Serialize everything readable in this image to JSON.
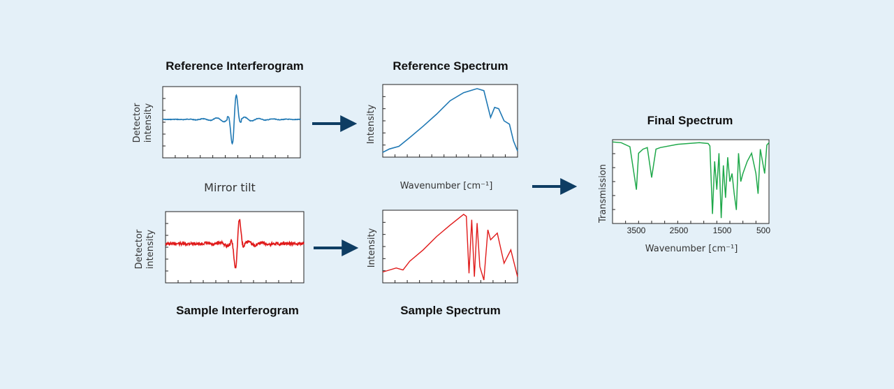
{
  "colors": {
    "background": "#e4f0f8",
    "reference": "#1f78b4",
    "sample": "#e01a1a",
    "final": "#1fa84a",
    "arrow": "#0e3d63"
  },
  "labels": {
    "reference_interferogram": "Reference Interferogram",
    "reference_spectrum": "Reference Spectrum",
    "sample_interferogram": "Sample Interferogram",
    "sample_spectrum": "Sample Spectrum",
    "final_spectrum": "Final Spectrum",
    "mirror_tilt": "Mirror tilt",
    "wavenumber_mid": "Wavenumber [cm⁻¹]",
    "detector_intensity_line1": "Detector",
    "detector_intensity_line2": "intensity",
    "intensity": "Intensity",
    "transmission": "Transmission",
    "final_xlabel": "Wavenumber [cm⁻¹]"
  },
  "chart_data": [
    {
      "type": "line",
      "id": "reference_interferogram",
      "title": "Reference Interferogram",
      "ylabel": "Detector intensity",
      "series": [
        {
          "x": [
            0,
            0.2,
            0.4,
            0.44,
            0.46,
            0.49,
            0.5,
            0.51,
            0.53,
            0.56,
            0.6,
            0.8,
            1.0
          ],
          "values": [
            0,
            0.01,
            -0.02,
            0.06,
            -0.08,
            0.5,
            0.85,
            -1.0,
            -0.1,
            0.05,
            -0.03,
            0.01,
            0
          ]
        }
      ]
    },
    {
      "type": "line",
      "id": "sample_interferogram",
      "title": "Sample Interferogram",
      "ylabel": "Detector intensity",
      "series": [
        {
          "x": [
            0,
            0.2,
            0.4,
            0.46,
            0.49,
            0.5,
            0.51,
            0.53,
            0.56,
            0.6,
            0.8,
            1.0
          ],
          "values": [
            0,
            0.04,
            -0.05,
            0.12,
            0.5,
            0.85,
            -1.0,
            -0.15,
            0.1,
            -0.06,
            0.04,
            0
          ]
        }
      ]
    },
    {
      "type": "line",
      "id": "reference_spectrum",
      "title": "Reference Spectrum",
      "ylabel": "Intensity",
      "xlabel": "Wavenumber [cm⁻¹]",
      "series": [
        {
          "x": [
            0,
            0.05,
            0.12,
            0.2,
            0.3,
            0.4,
            0.5,
            0.6,
            0.7,
            0.75,
            0.8,
            0.83,
            0.86,
            0.9,
            0.94,
            0.97,
            1.0
          ],
          "values": [
            0.03,
            0.08,
            0.12,
            0.25,
            0.42,
            0.6,
            0.8,
            0.92,
            0.98,
            0.95,
            0.55,
            0.7,
            0.68,
            0.5,
            0.45,
            0.2,
            0.05
          ]
        }
      ]
    },
    {
      "type": "line",
      "id": "sample_spectrum",
      "title": "Sample Spectrum",
      "ylabel": "Intensity",
      "series": [
        {
          "x": [
            0,
            0.1,
            0.15,
            0.2,
            0.3,
            0.4,
            0.5,
            0.6,
            0.62,
            0.64,
            0.66,
            0.68,
            0.7,
            0.72,
            0.75,
            0.78,
            0.8,
            0.85,
            0.9,
            0.95,
            1.0
          ],
          "values": [
            0.12,
            0.18,
            0.15,
            0.28,
            0.45,
            0.65,
            0.82,
            0.98,
            0.95,
            0.1,
            0.9,
            0.05,
            0.85,
            0.2,
            0.0,
            0.75,
            0.6,
            0.7,
            0.25,
            0.45,
            0.05
          ]
        }
      ]
    },
    {
      "type": "line",
      "id": "final_spectrum",
      "title": "Final Spectrum",
      "ylabel": "Transmission",
      "xlabel": "Wavenumber [cm⁻¹]",
      "xlim": [
        4000,
        400
      ],
      "xticks": [
        "3500",
        "2500",
        "1500",
        "500"
      ],
      "series": [
        {
          "x": [
            4000,
            3800,
            3600,
            3450,
            3400,
            3300,
            3200,
            3100,
            3000,
            2900,
            2500,
            2000,
            1800,
            1760,
            1700,
            1650,
            1600,
            1550,
            1500,
            1450,
            1400,
            1350,
            1300,
            1250,
            1200,
            1150,
            1100,
            1050,
            1000,
            900,
            800,
            700,
            650,
            600,
            500,
            450,
            400
          ],
          "values": [
            0.99,
            0.98,
            0.93,
            0.4,
            0.85,
            0.9,
            0.92,
            0.55,
            0.9,
            0.92,
            0.96,
            0.98,
            0.97,
            0.94,
            0.1,
            0.75,
            0.4,
            0.85,
            0.05,
            0.7,
            0.3,
            0.8,
            0.5,
            0.6,
            0.35,
            0.15,
            0.85,
            0.5,
            0.6,
            0.75,
            0.85,
            0.6,
            0.35,
            0.9,
            0.6,
            0.95,
            0.98
          ]
        }
      ]
    }
  ]
}
